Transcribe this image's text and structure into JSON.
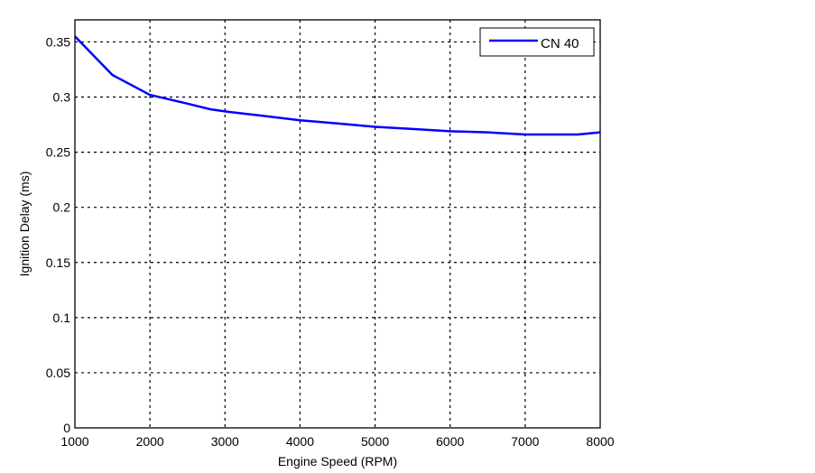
{
  "chart_data": {
    "type": "line",
    "title": "",
    "xlabel": "Engine Speed (RPM)",
    "ylabel": "Ignition Delay (ms)",
    "xlim": [
      1000,
      8000
    ],
    "ylim": [
      0,
      0.37
    ],
    "xticks": [
      1000,
      2000,
      3000,
      4000,
      5000,
      6000,
      7000,
      8000
    ],
    "xtick_labels": [
      "1000",
      "2000",
      "3000",
      "4000",
      "5000",
      "6000",
      "7000",
      "8000"
    ],
    "yticks": [
      0,
      0.05,
      0.1,
      0.15,
      0.2,
      0.25,
      0.3,
      0.35
    ],
    "ytick_labels": [
      "0",
      "0.05",
      "0.1",
      "0.15",
      "0.2",
      "0.25",
      "0.3",
      "0.35"
    ],
    "grid": true,
    "legend_position": "top-right",
    "series": [
      {
        "name": "CN 40",
        "color": "#0000ff",
        "x": [
          1000,
          1500,
          2000,
          2500,
          2800,
          3000,
          3500,
          4000,
          4500,
          5000,
          5500,
          6000,
          6500,
          7000,
          7500,
          7700,
          8000
        ],
        "y": [
          0.355,
          0.32,
          0.302,
          0.294,
          0.289,
          0.287,
          0.283,
          0.279,
          0.276,
          0.273,
          0.271,
          0.269,
          0.268,
          0.266,
          0.266,
          0.266,
          0.268
        ]
      }
    ]
  }
}
